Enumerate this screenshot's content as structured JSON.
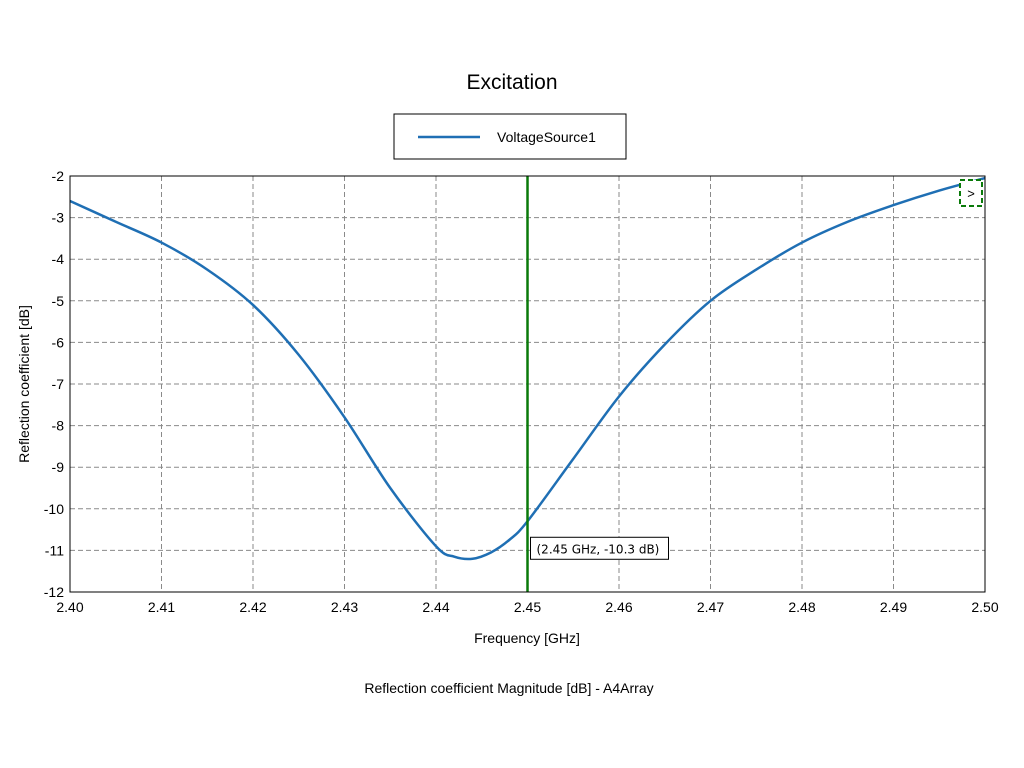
{
  "chart_data": {
    "type": "line",
    "title": "Excitation",
    "xlabel": "Frequency [GHz]",
    "ylabel": "Reflection coefficient [dB]",
    "footer": "Reflection coefficient Magnitude [dB] - A4Array",
    "xlim": [
      2.4,
      2.5
    ],
    "ylim": [
      -12,
      -2
    ],
    "x_ticks": [
      "2.40",
      "2.41",
      "2.42",
      "2.43",
      "2.44",
      "2.45",
      "2.46",
      "2.47",
      "2.48",
      "2.49",
      "2.50"
    ],
    "y_ticks": [
      "-2",
      "-3",
      "-4",
      "-5",
      "-6",
      "-7",
      "-8",
      "-9",
      "-10",
      "-11",
      "-12"
    ],
    "grid": true,
    "legend_position": "top-center",
    "series": [
      {
        "name": "VoltageSource1",
        "color": "#1f6fb4",
        "x": [
          2.4,
          2.405,
          2.41,
          2.415,
          2.42,
          2.425,
          2.43,
          2.435,
          2.44,
          2.442,
          2.444,
          2.446,
          2.448,
          2.45,
          2.455,
          2.46,
          2.465,
          2.47,
          2.475,
          2.48,
          2.485,
          2.49,
          2.495,
          2.5
        ],
        "y": [
          -2.6,
          -3.1,
          -3.6,
          -4.25,
          -5.1,
          -6.3,
          -7.8,
          -9.5,
          -10.9,
          -11.15,
          -11.2,
          -11.05,
          -10.75,
          -10.3,
          -8.8,
          -7.3,
          -6.05,
          -5.0,
          -4.25,
          -3.6,
          -3.1,
          -2.7,
          -2.35,
          -2.05
        ]
      }
    ],
    "marker": {
      "x": 2.45,
      "color": "#0a7a0a",
      "label": "(2.45 GHz, -10.3 dB)",
      "point_y": -10.3
    },
    "expand_button_label": ">"
  }
}
